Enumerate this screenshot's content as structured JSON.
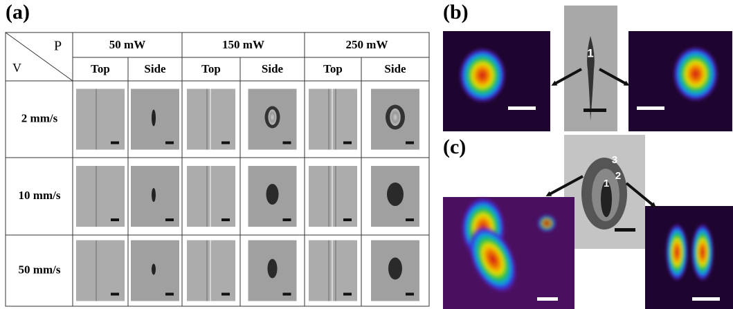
{
  "panels": {
    "a": {
      "label": "(a)",
      "corner": {
        "p": "P",
        "v": "V"
      },
      "columns": [
        {
          "power": "50 mW",
          "views": [
            "Top",
            "Side"
          ]
        },
        {
          "power": "150 mW",
          "views": [
            "Top",
            "Side"
          ]
        },
        {
          "power": "250 mW",
          "views": [
            "Top",
            "Side"
          ]
        }
      ],
      "speeds": [
        "2 mm/s",
        "10 mm/s",
        "50 mm/s"
      ]
    },
    "b": {
      "label": "(b)",
      "markers": [
        "1"
      ]
    },
    "c": {
      "label": "(c)",
      "markers": [
        "1",
        "2",
        "3"
      ]
    }
  }
}
